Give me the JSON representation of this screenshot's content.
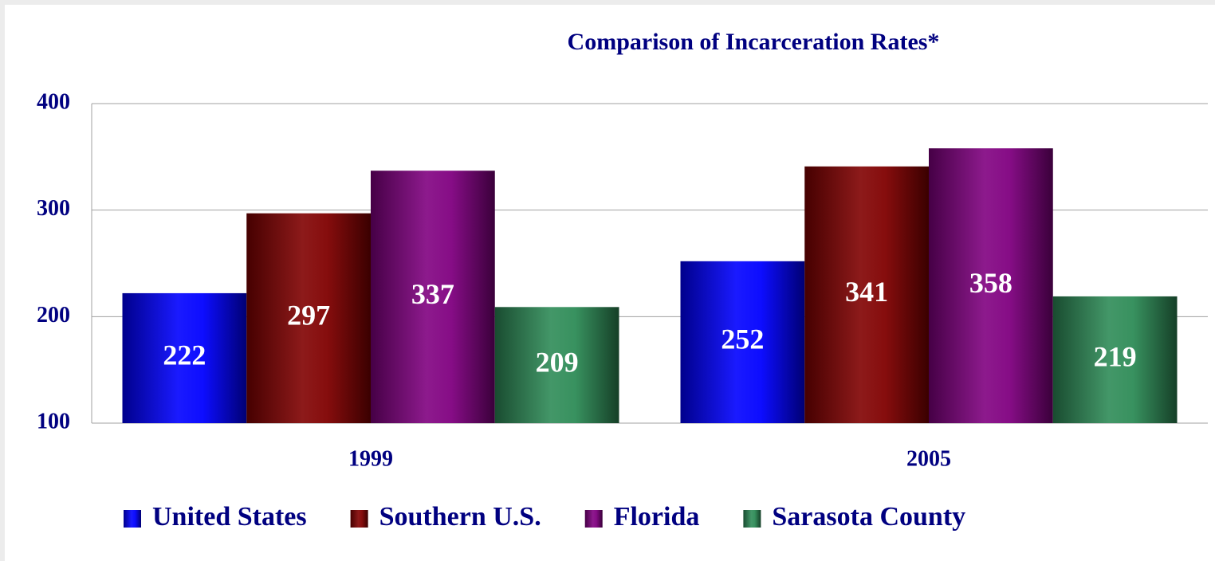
{
  "chart_data": {
    "type": "bar",
    "title": "Comparison of Incarceration Rates*",
    "categories": [
      "1999",
      "2005"
    ],
    "series": [
      {
        "name": "United States",
        "color": "#0000ff",
        "values": [
          222,
          252
        ]
      },
      {
        "name": "Southern U.S.",
        "color": "#800000",
        "values": [
          297,
          341
        ]
      },
      {
        "name": "Florida",
        "color": "#800080",
        "values": [
          337,
          358
        ]
      },
      {
        "name": "Sarasota County",
        "color": "#2e8b57",
        "values": [
          209,
          219
        ]
      }
    ],
    "ylim": [
      100,
      400
    ],
    "yticks": [
      100,
      200,
      300,
      400
    ],
    "grid": true,
    "legend": "bottom"
  }
}
